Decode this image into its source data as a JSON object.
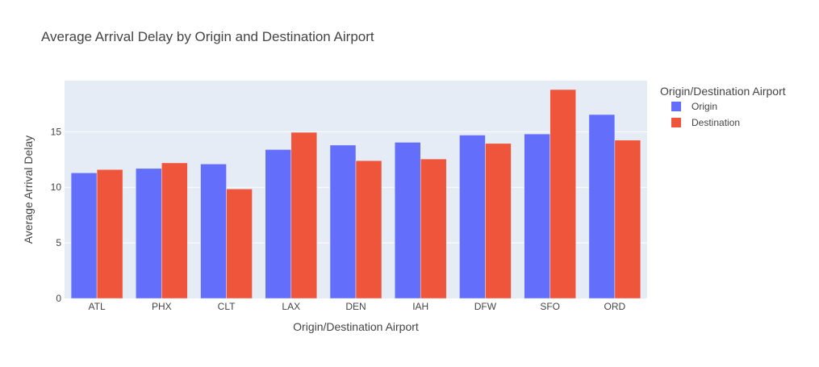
{
  "chart_data": {
    "type": "bar",
    "title": "Average Arrival Delay by Origin and Destination Airport",
    "xlabel": "Origin/Destination Airport",
    "ylabel": "Average Arrival Delay",
    "categories": [
      "ATL",
      "PHX",
      "CLT",
      "LAX",
      "DEN",
      "IAH",
      "DFW",
      "SFO",
      "ORD"
    ],
    "series": [
      {
        "name": "Origin",
        "color": "#636efa",
        "values": [
          11.3,
          11.7,
          12.1,
          13.4,
          13.8,
          14.05,
          14.7,
          14.8,
          16.55
        ]
      },
      {
        "name": "Destination",
        "color": "#ef553b",
        "values": [
          11.6,
          12.2,
          9.85,
          14.95,
          12.4,
          12.55,
          13.95,
          18.8,
          14.25
        ]
      }
    ],
    "ylim": [
      0,
      19.6
    ],
    "yticks": [
      0,
      5,
      10,
      15
    ],
    "grid": true,
    "plot_background": "#e5ecf6",
    "legend": {
      "title": "Origin/Destination Airport",
      "position": "right"
    }
  }
}
